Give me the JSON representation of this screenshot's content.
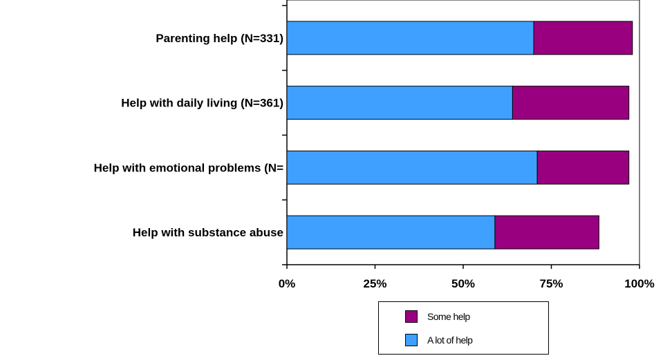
{
  "chart_data": {
    "type": "bar",
    "orientation": "horizontal",
    "stacked": true,
    "categories": [
      "Parenting help (N=331)",
      "Help with daily living (N=361)",
      "Help with emotional problems (N=",
      "Help with substance abuse"
    ],
    "series": [
      {
        "name": "A lot of help",
        "color": "#3fa0ff",
        "values": [
          70,
          64,
          71,
          59
        ]
      },
      {
        "name": "Some help",
        "color": "#990080",
        "values": [
          28,
          33,
          26,
          29.5
        ]
      }
    ],
    "xlim": [
      0,
      100
    ],
    "xticks": [
      "0%",
      "25%",
      "50%",
      "75%",
      "100%"
    ],
    "grid": false,
    "legend_position": "bottom",
    "legend_order": [
      "Some help",
      "A lot of help"
    ]
  },
  "legend": {
    "items": [
      {
        "label": "Some help",
        "color": "#990080"
      },
      {
        "label": "A lot of help",
        "color": "#3fa0ff"
      }
    ]
  }
}
